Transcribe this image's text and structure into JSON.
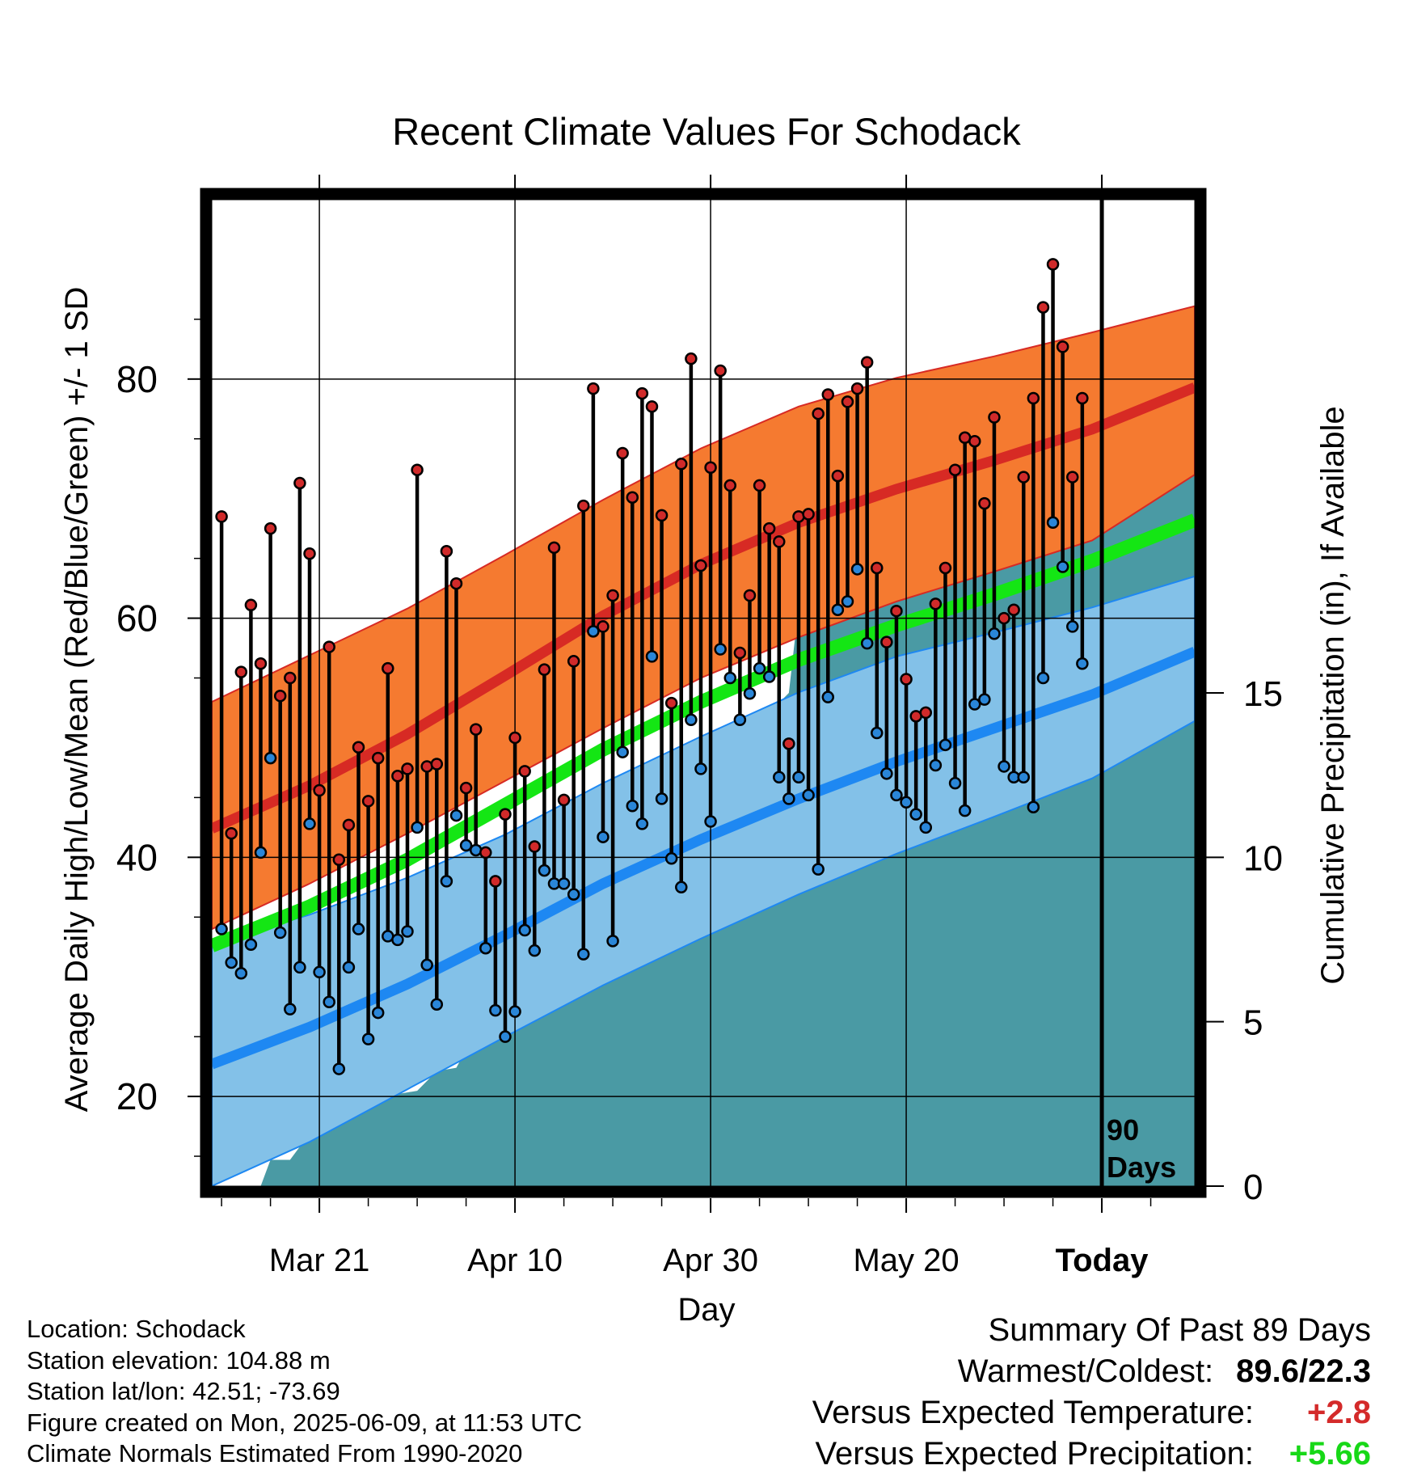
{
  "chart_data": {
    "type": "line",
    "title": "Recent Climate Values For Schodack",
    "xlabel": "Day",
    "ylabel_left": "Average Daily High/Low/Mean (Red/Blue/Green) +/- 1 SD",
    "ylabel_right": "Cumulative Precipitation (in), If Available",
    "x_ticks": [
      {
        "day": 10,
        "label": "Mar 21"
      },
      {
        "day": 30,
        "label": "Apr 10"
      },
      {
        "day": 50,
        "label": "Apr 30"
      },
      {
        "day": 70,
        "label": "May 20"
      },
      {
        "day": 90,
        "label": "Today"
      }
    ],
    "ylim_left": [
      12.5,
      95
    ],
    "y_ticks_left": [
      "20",
      "40",
      "60",
      "80"
    ],
    "ylim_right": [
      0,
      30
    ],
    "y_ticks_right": [
      "0",
      "5",
      "10",
      "15"
    ],
    "xlim_days": [
      -1,
      99.5
    ],
    "today_label": [
      "90",
      "Days"
    ],
    "normals": {
      "days": [
        -1,
        9,
        19,
        29,
        39,
        49,
        59,
        69,
        79,
        89,
        99.5
      ],
      "high_mean": [
        42.4,
        46.0,
        50.3,
        55.2,
        60.2,
        64.5,
        68.0,
        70.8,
        73.2,
        75.8,
        79.3
      ],
      "high_upper": [
        53.0,
        56.9,
        60.8,
        65.3,
        69.9,
        74.2,
        77.7,
        80.1,
        81.9,
        83.9,
        86.1
      ],
      "high_lower": [
        34.0,
        37.8,
        42.0,
        46.4,
        50.8,
        55.0,
        58.4,
        61.4,
        63.9,
        66.5,
        72.0
      ],
      "low_mean": [
        22.7,
        25.8,
        29.4,
        33.5,
        37.8,
        41.5,
        44.9,
        48.0,
        50.8,
        53.6,
        57.2
      ],
      "low_upper": [
        32.8,
        35.2,
        38.3,
        41.9,
        46.2,
        50.1,
        53.8,
        56.8,
        58.8,
        60.9,
        63.5
      ],
      "low_lower": [
        12.5,
        16.2,
        20.6,
        25.0,
        29.3,
        33.2,
        36.9,
        40.3,
        43.4,
        46.6,
        51.4
      ],
      "avg_mean": [
        32.6,
        35.9,
        39.8,
        44.4,
        49.0,
        53.0,
        56.5,
        59.4,
        62.0,
        64.8,
        68.2
      ]
    },
    "series": [
      {
        "name": "High",
        "values": [
          68.5,
          42.0,
          55.5,
          61.1,
          56.2,
          67.5,
          53.5,
          55.0,
          71.3,
          65.4,
          45.6,
          57.6,
          39.8,
          42.7,
          49.2,
          44.7,
          48.3,
          55.8,
          46.8,
          47.4,
          72.4,
          47.6,
          47.8,
          65.6,
          62.9,
          45.8,
          50.7,
          40.4,
          38.0,
          43.6,
          50.0,
          47.2,
          40.9,
          55.7,
          65.9,
          44.8,
          56.4,
          69.4,
          79.2,
          59.3,
          61.9,
          73.8,
          70.1,
          78.8,
          77.7,
          68.6,
          52.9,
          72.9,
          81.7,
          64.4,
          72.6,
          80.7,
          71.1,
          57.1,
          61.9,
          71.1,
          67.5,
          66.4,
          49.5,
          68.5,
          68.7,
          77.1,
          78.7,
          71.9,
          78.1,
          79.2,
          81.4,
          64.2,
          58.0,
          60.6,
          54.9,
          51.8,
          52.1,
          61.2,
          64.2,
          72.4,
          75.1,
          74.8,
          69.6,
          76.8,
          60.0,
          60.7,
          71.8,
          78.4,
          86.0,
          89.6,
          82.7,
          71.8,
          78.4
        ]
      },
      {
        "name": "Low",
        "values": [
          34.0,
          31.2,
          30.3,
          32.7,
          40.4,
          48.3,
          33.7,
          27.3,
          30.8,
          42.8,
          30.4,
          27.9,
          22.3,
          30.8,
          34.0,
          24.8,
          27.0,
          33.4,
          33.1,
          33.8,
          42.5,
          31.0,
          27.7,
          38.0,
          43.5,
          41.0,
          40.6,
          32.4,
          27.2,
          25.0,
          27.1,
          33.9,
          32.2,
          38.9,
          37.8,
          37.8,
          36.9,
          31.9,
          58.9,
          41.7,
          33.0,
          48.8,
          44.3,
          42.8,
          56.8,
          44.9,
          39.9,
          37.5,
          51.5,
          47.4,
          43.0,
          57.4,
          55.0,
          51.5,
          53.7,
          55.8,
          55.1,
          46.7,
          44.9,
          46.7,
          45.2,
          39.0,
          53.4,
          60.7,
          61.4,
          64.1,
          57.9,
          50.4,
          47.0,
          45.2,
          44.6,
          43.6,
          42.5,
          47.7,
          49.4,
          46.2,
          43.9,
          52.8,
          53.2,
          58.7,
          47.6,
          46.7,
          46.7,
          44.2,
          55.0,
          68.0,
          64.3,
          59.3,
          56.2
        ]
      }
    ],
    "precip_cumulative": {
      "days": [
        4,
        5,
        7,
        8,
        10,
        12,
        14,
        16,
        18,
        20,
        22,
        24,
        26,
        28,
        30,
        32,
        34,
        36,
        38,
        40,
        42,
        44,
        46,
        48,
        50,
        52,
        53,
        54,
        55,
        56,
        57,
        58,
        60,
        62,
        64,
        66,
        68,
        70,
        71,
        72,
        73,
        74,
        76,
        78,
        80,
        81,
        82,
        84,
        85,
        86,
        87,
        99.5
      ],
      "values": [
        0.0,
        0.8,
        0.8,
        1.2,
        2.2,
        2.3,
        2.5,
        2.5,
        2.8,
        2.9,
        3.5,
        3.6,
        4.7,
        5.0,
        5.2,
        5.9,
        7.4,
        7.5,
        7.6,
        8.3,
        8.4,
        8.6,
        9.7,
        9.9,
        11.9,
        12.0,
        12.5,
        13.5,
        14.0,
        14.6,
        14.7,
        15.0,
        20.3,
        20.3,
        20.3,
        20.4,
        20.4,
        20.5,
        20.6,
        20.8,
        21.0,
        21.1,
        21.2,
        21.2,
        21.2,
        22.9,
        23.0,
        23.0,
        23.3,
        23.6,
        24.3,
        24.3
      ]
    },
    "colors": {
      "high_band": "#f57a30",
      "high_line": "#d72a24",
      "low_band": "#83c1e8",
      "low_line": "#1e88f2",
      "mean_line": "#14e614",
      "precip_fill": "#4a9aa4",
      "high_marker": "#d02a2a",
      "low_marker": "#2a86d8"
    },
    "grid": true
  },
  "footer_left": [
    "Location: Schodack",
    "Station elevation: 104.88 m",
    "Station lat/lon: 42.51; -73.69",
    "Figure created on Mon, 2025-06-09, at 11:53 UTC",
    "Climate Normals Estimated From 1990-2020"
  ],
  "summary": {
    "heading": "Summary Of Past 89 Days",
    "warmest_coldest_label": "Warmest/Coldest:",
    "warmest_coldest_value": "89.6/22.3",
    "temp_label": "Versus Expected Temperature:",
    "temp_value": "+2.8",
    "temp_color": "#d42a2a",
    "precip_label": "Versus Expected Precipitation:",
    "precip_value": "+5.66",
    "precip_color": "#17d817"
  }
}
